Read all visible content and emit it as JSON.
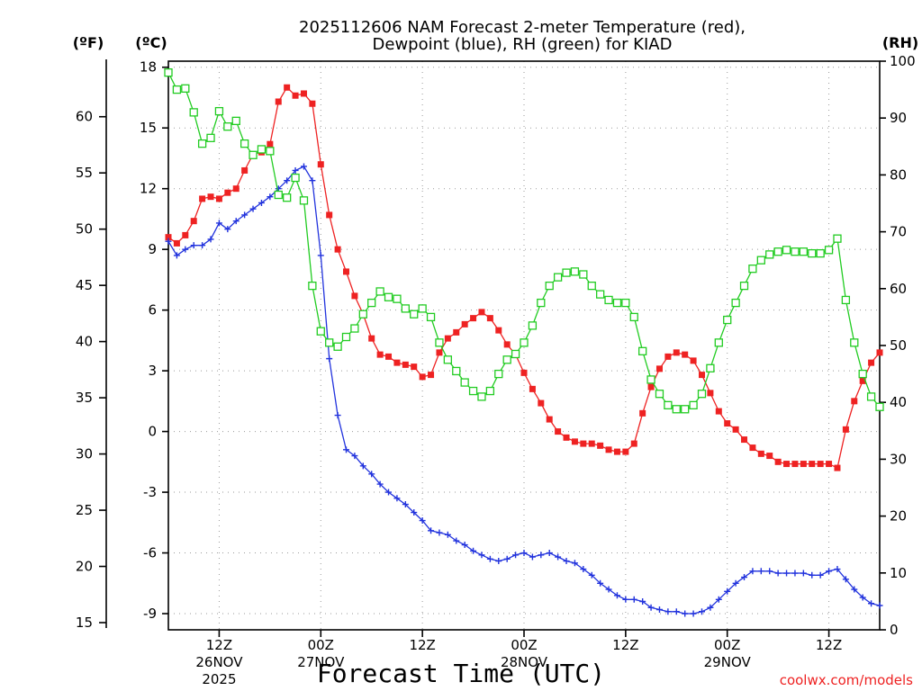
{
  "chart_data": {
    "type": "line",
    "title": "2025112606 NAM Forecast 2-meter Temperature (red),",
    "subtitle": "Dewpoint (blue), RH (green) for KIAD",
    "xlabel": "Forecast Time (UTC)",
    "units": {
      "fahrenheit": "(ºF)",
      "celsius": "(ºC)",
      "rh": "(RH)"
    },
    "watermark": "coolwx.com/models",
    "x_unit": "forecast hour (0 = 2025-11-26 06Z)",
    "xlim": [
      0,
      84
    ],
    "x_ticks": [
      {
        "x": 6,
        "labels": [
          "12Z",
          "26NOV",
          "2025"
        ]
      },
      {
        "x": 18,
        "labels": [
          "00Z",
          "27NOV"
        ]
      },
      {
        "x": 30,
        "labels": [
          "12Z"
        ]
      },
      {
        "x": 42,
        "labels": [
          "00Z",
          "28NOV"
        ]
      },
      {
        "x": 54,
        "labels": [
          "12Z"
        ]
      },
      {
        "x": 66,
        "labels": [
          "00Z",
          "29NOV"
        ]
      },
      {
        "x": 78,
        "labels": [
          "12Z"
        ]
      }
    ],
    "celsius_axis": {
      "ylim": [
        -9.8,
        18.3
      ],
      "ticks": [
        "-9",
        "-6",
        "-3",
        "0",
        "3",
        "6",
        "9",
        "12",
        "15",
        "18"
      ]
    },
    "fahrenheit_axis": {
      "ticks": [
        "15",
        "20",
        "25",
        "30",
        "35",
        "40",
        "45",
        "50",
        "55",
        "60"
      ]
    },
    "rh_axis": {
      "ylim": [
        0,
        100
      ],
      "ticks": [
        "0",
        "10",
        "20",
        "30",
        "40",
        "50",
        "60",
        "70",
        "80",
        "90",
        "100"
      ]
    },
    "series": [
      {
        "name": "2-meter Temperature (°C)",
        "color": "#ee2222",
        "marker": "filled-square",
        "axis": "celsius",
        "values": [
          9.6,
          9.3,
          9.7,
          10.4,
          11.5,
          11.6,
          11.5,
          11.8,
          12.0,
          12.9,
          13.7,
          13.8,
          14.2,
          16.3,
          17.0,
          16.6,
          16.7,
          16.2,
          13.2,
          10.7,
          9.0,
          7.9,
          6.7,
          5.8,
          4.6,
          3.8,
          3.7,
          3.4,
          3.3,
          3.2,
          2.7,
          2.8,
          3.9,
          4.6,
          4.9,
          5.3,
          5.6,
          5.9,
          5.6,
          5.0,
          4.3,
          3.8,
          2.9,
          2.1,
          1.4,
          0.6,
          0.0,
          -0.3,
          -0.5,
          -0.6,
          -0.6,
          -0.7,
          -0.9,
          -1.0,
          -1.0,
          -0.6,
          0.9,
          2.2,
          3.1,
          3.7,
          3.9,
          3.8,
          3.5,
          2.8,
          1.9,
          1.0,
          0.4,
          0.1,
          -0.4,
          -0.8,
          -1.1,
          -1.2,
          -1.5,
          -1.6,
          -1.6,
          -1.6,
          -1.6,
          -1.6,
          -1.6,
          -1.8,
          0.1,
          1.5,
          2.5,
          3.4,
          3.9
        ]
      },
      {
        "name": "Dewpoint (°C)",
        "color": "#2233dd",
        "marker": "cross",
        "axis": "celsius",
        "values": [
          9.4,
          8.7,
          9.0,
          9.2,
          9.2,
          9.5,
          10.3,
          10.0,
          10.4,
          10.7,
          11.0,
          11.3,
          11.6,
          12.0,
          12.4,
          12.9,
          13.1,
          12.4,
          8.7,
          3.6,
          0.8,
          -0.9,
          -1.2,
          -1.7,
          -2.1,
          -2.6,
          -3.0,
          -3.3,
          -3.6,
          -4.0,
          -4.4,
          -4.9,
          -5.0,
          -5.1,
          -5.4,
          -5.6,
          -5.9,
          -6.1,
          -6.3,
          -6.4,
          -6.3,
          -6.1,
          -6.0,
          -6.2,
          -6.1,
          -6.0,
          -6.2,
          -6.4,
          -6.5,
          -6.8,
          -7.1,
          -7.5,
          -7.8,
          -8.1,
          -8.3,
          -8.3,
          -8.4,
          -8.7,
          -8.8,
          -8.9,
          -8.9,
          -9.0,
          -9.0,
          -8.9,
          -8.7,
          -8.3,
          -7.9,
          -7.5,
          -7.2,
          -6.9,
          -6.9,
          -6.9,
          -7.0,
          -7.0,
          -7.0,
          -7.0,
          -7.1,
          -7.1,
          -6.9,
          -6.8,
          -7.3,
          -7.8,
          -8.2,
          -8.5,
          -8.6
        ]
      },
      {
        "name": "RH (%)",
        "color": "#22cc22",
        "marker": "open-square",
        "axis": "rh",
        "values": [
          98,
          95,
          95.2,
          91,
          85.5,
          86.5,
          91.2,
          88.5,
          89.5,
          85.5,
          83.5,
          84.5,
          84.2,
          76.5,
          76,
          79.5,
          75.5,
          60.5,
          52.5,
          50.5,
          49.8,
          51.5,
          53,
          55.5,
          57.5,
          59.5,
          58.5,
          58.2,
          56.5,
          55.5,
          56.5,
          55,
          50.5,
          47.5,
          45.5,
          43.5,
          42,
          41,
          42,
          45,
          47.5,
          48.5,
          50.5,
          53.5,
          57.5,
          60.5,
          62,
          62.8,
          63,
          62.5,
          60.5,
          59,
          58,
          57.5,
          57.5,
          55,
          49,
          44,
          41.5,
          39.5,
          38.8,
          38.8,
          39.5,
          41.5,
          46,
          50.5,
          54.5,
          57.5,
          60.5,
          63.5,
          65,
          66,
          66.5,
          66.8,
          66.5,
          66.5,
          66.2,
          66.2,
          66.8,
          68.8,
          58,
          50.5,
          45,
          41,
          39.2
        ]
      }
    ]
  }
}
